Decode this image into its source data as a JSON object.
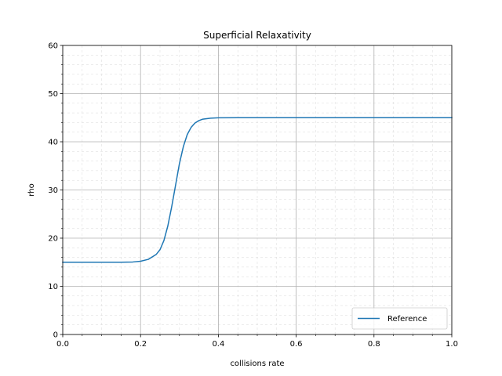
{
  "chart_data": {
    "type": "line",
    "title": "Superficial Relaxativity",
    "xlabel": "collisions rate",
    "ylabel": "rho",
    "xlim": [
      0.0,
      1.0
    ],
    "ylim": [
      0,
      60
    ],
    "x_ticks": [
      "0.0",
      "0.2",
      "0.4",
      "0.6",
      "0.8",
      "1.0"
    ],
    "y_ticks": [
      "0",
      "10",
      "20",
      "30",
      "40",
      "50",
      "60"
    ],
    "grid": true,
    "minor_grid": true,
    "legend_position": "lower right",
    "series": [
      {
        "name": "Reference",
        "color": "#1f77b4",
        "x": [
          0.0,
          0.05,
          0.1,
          0.15,
          0.18,
          0.2,
          0.22,
          0.24,
          0.25,
          0.26,
          0.27,
          0.28,
          0.29,
          0.3,
          0.31,
          0.32,
          0.33,
          0.34,
          0.35,
          0.36,
          0.38,
          0.4,
          0.45,
          0.5,
          0.6,
          0.7,
          0.8,
          0.9,
          1.0
        ],
        "y": [
          15.0,
          15.0,
          15.0,
          15.0,
          15.05,
          15.2,
          15.6,
          16.6,
          17.6,
          19.5,
          22.5,
          26.5,
          31.0,
          35.5,
          39.0,
          41.5,
          43.0,
          43.9,
          44.4,
          44.7,
          44.9,
          44.97,
          45.0,
          45.0,
          45.0,
          45.0,
          45.0,
          45.0,
          45.0
        ]
      }
    ]
  }
}
